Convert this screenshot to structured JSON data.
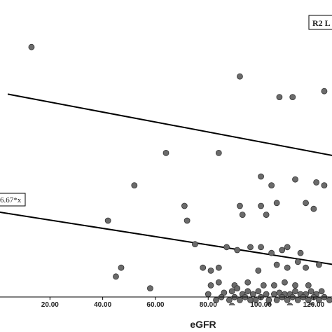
{
  "chart_data": {
    "type": "scatter",
    "title": "",
    "xlabel": "eGFR",
    "ylabel": "",
    "xlim": [
      0,
      128
    ],
    "ylim": [
      0,
      100
    ],
    "x_ticks": [
      "20.00",
      "40.00",
      "60.00",
      "80.00",
      "100.00",
      "120.00"
    ],
    "x_tick_values": [
      20,
      40,
      60,
      80,
      100,
      120
    ],
    "legend_label": "R2 L",
    "equation_label": "6.67*x",
    "point_color": "#6b6b6b",
    "line_color": "#000000",
    "series": [
      {
        "values": [
          [
            13,
            84
          ],
          [
            92,
            74
          ],
          [
            107,
            67
          ],
          [
            112,
            67
          ],
          [
            124,
            69
          ],
          [
            64,
            48
          ],
          [
            84,
            48
          ],
          [
            52,
            37
          ],
          [
            100,
            40
          ],
          [
            104,
            37
          ],
          [
            113,
            39
          ],
          [
            121,
            38
          ],
          [
            124,
            37
          ],
          [
            42,
            25
          ],
          [
            71,
            30
          ],
          [
            72,
            25
          ],
          [
            92,
            30
          ],
          [
            93,
            27
          ],
          [
            100,
            30
          ],
          [
            102,
            27
          ],
          [
            106,
            31
          ],
          [
            117,
            31
          ],
          [
            120,
            29
          ],
          [
            75,
            17
          ],
          [
            87,
            16
          ],
          [
            91,
            15
          ],
          [
            96,
            16
          ],
          [
            100,
            16
          ],
          [
            104,
            14
          ],
          [
            108,
            15
          ],
          [
            110,
            16
          ],
          [
            115,
            14
          ],
          [
            47,
            9
          ],
          [
            45,
            6
          ],
          [
            78,
            9
          ],
          [
            81,
            8
          ],
          [
            84,
            9
          ],
          [
            99,
            8
          ],
          [
            106,
            10
          ],
          [
            110,
            9
          ],
          [
            114,
            11
          ],
          [
            117,
            9
          ],
          [
            122,
            10
          ],
          [
            58,
            2
          ],
          [
            81,
            3
          ],
          [
            84,
            4
          ],
          [
            90,
            3
          ],
          [
            95,
            4
          ],
          [
            101,
            3
          ],
          [
            105,
            3
          ],
          [
            109,
            4
          ],
          [
            113,
            3
          ],
          [
            118,
            3
          ],
          [
            80,
            0
          ],
          [
            86,
            0.5
          ],
          [
            89,
            1
          ],
          [
            91,
            2
          ],
          [
            93,
            0
          ],
          [
            95,
            1
          ],
          [
            97,
            0
          ],
          [
            99,
            1
          ],
          [
            102,
            0
          ],
          [
            105,
            0
          ],
          [
            107,
            0.5
          ],
          [
            109,
            0
          ],
          [
            111,
            0
          ],
          [
            113,
            1
          ],
          [
            115,
            0
          ],
          [
            117,
            0
          ],
          [
            119,
            1
          ],
          [
            121,
            0
          ],
          [
            123,
            1
          ],
          [
            83,
            -2
          ],
          [
            85,
            -1
          ],
          [
            88,
            -2
          ],
          [
            90,
            -1
          ],
          [
            92,
            -2
          ],
          [
            94,
            -1
          ],
          [
            96,
            -2
          ],
          [
            98,
            -2
          ],
          [
            100,
            -1
          ],
          [
            103,
            -2
          ],
          [
            106,
            -2
          ],
          [
            108,
            -1
          ],
          [
            110,
            -2
          ],
          [
            112,
            -1
          ],
          [
            114,
            -2
          ],
          [
            116,
            -1
          ],
          [
            118,
            -2
          ],
          [
            120,
            -1
          ],
          [
            122,
            -2
          ],
          [
            124,
            -1
          ],
          [
            126,
            -2
          ],
          [
            77,
            -5
          ],
          [
            89,
            -4
          ],
          [
            98,
            -5
          ],
          [
            103,
            -4
          ],
          [
            111,
            -4
          ],
          [
            119,
            -4
          ],
          [
            124,
            -5
          ]
        ]
      }
    ],
    "fit_lines": [
      {
        "x": [
          4,
          128
        ],
        "y": [
          68,
          47
        ]
      },
      {
        "x": [
          0,
          128
        ],
        "y": [
          28,
          10
        ]
      }
    ]
  }
}
